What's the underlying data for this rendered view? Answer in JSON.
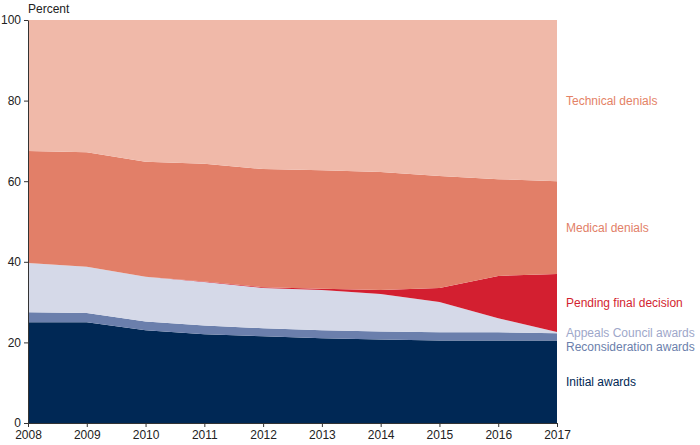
{
  "chart_data": {
    "type": "area",
    "stacked": true,
    "grid": false,
    "y_label": "Percent",
    "x": [
      2008,
      2009,
      2010,
      2011,
      2012,
      2013,
      2014,
      2015,
      2016,
      2017
    ],
    "xlim": [
      2008,
      2017
    ],
    "xticks": [
      2008,
      2009,
      2010,
      2011,
      2012,
      2013,
      2014,
      2015,
      2016,
      2017
    ],
    "ylim": [
      0,
      100
    ],
    "yticks": [
      0,
      20,
      40,
      60,
      80,
      100
    ],
    "series": [
      {
        "name": "Initial awards",
        "color": "#002855",
        "values": [
          25,
          25,
          23,
          22,
          21.5,
          21,
          20.7,
          20.5,
          20.5,
          20.5
        ]
      },
      {
        "name": "Reconsideration awards",
        "color": "#6b7fac",
        "values": [
          2.5,
          2.3,
          2.2,
          2.2,
          2.0,
          2.0,
          2.0,
          2.0,
          2.0,
          1.8
        ]
      },
      {
        "name": "Appeals Council awards",
        "color": "#d5d9e8",
        "values": [
          12.2,
          11.5,
          11.1,
          10.8,
          10.0,
          10.0,
          9.3,
          7.5,
          3.5,
          0.3
        ]
      },
      {
        "name": "Pending final decision",
        "color": "#d31f30",
        "values": [
          0,
          0,
          0,
          0.1,
          0.2,
          0.3,
          1.0,
          3.5,
          10.5,
          14.4
        ]
      },
      {
        "name": "Medical denials",
        "color": "#e27f68",
        "values": [
          27.8,
          28.4,
          28.5,
          29.2,
          29.3,
          29.4,
          29.3,
          27.8,
          24.0,
          23.0
        ]
      },
      {
        "name": "Technical denials",
        "color": "#f0b9a9",
        "values": [
          32.5,
          32.8,
          35.2,
          35.7,
          37,
          37.3,
          37.7,
          38.7,
          39.5,
          40
        ]
      }
    ]
  }
}
